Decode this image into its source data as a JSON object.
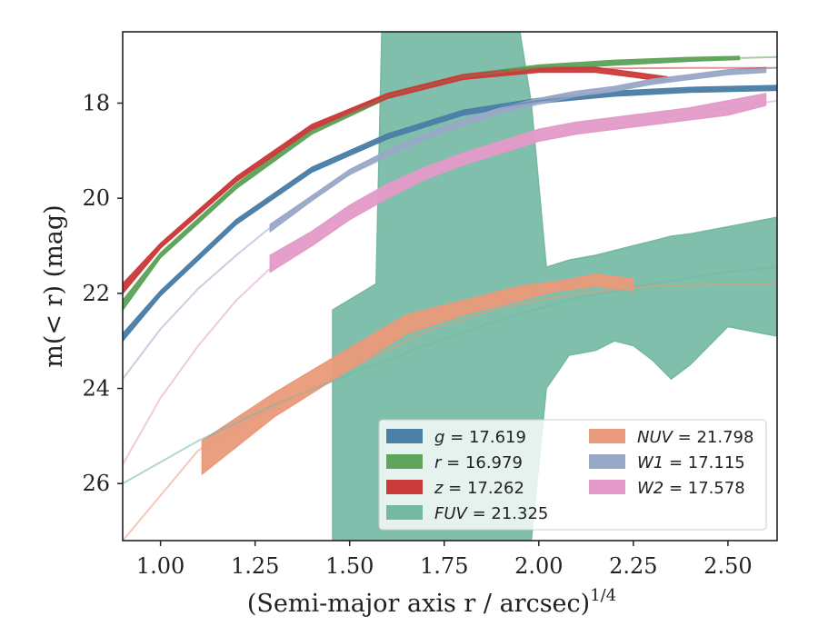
{
  "chart_data": {
    "type": "line",
    "xlabel": "(Semi-major axis r / arcsec)",
    "xlabel_exponent": "1/4",
    "ylabel": "m(< r) (mag)",
    "xlim": [
      0.9,
      2.63
    ],
    "ylim": [
      27.2,
      16.5
    ],
    "y_inverted": true,
    "x_ticks": [
      1.0,
      1.25,
      1.5,
      1.75,
      2.0,
      2.25,
      2.5
    ],
    "x_tick_labels": [
      "1.00",
      "1.25",
      "1.50",
      "1.75",
      "2.00",
      "2.25",
      "2.50"
    ],
    "y_ticks": [
      18,
      20,
      22,
      24,
      26
    ],
    "y_tick_labels": [
      "18",
      "20",
      "22",
      "24",
      "26"
    ],
    "grid": false,
    "legend_position": "lower-right",
    "legend": [
      {
        "band": "g",
        "value": "17.619",
        "color": "#4c7fa8"
      },
      {
        "band": "NUV",
        "value": "21.798",
        "color": "#e99a7a"
      },
      {
        "band": "r",
        "value": "16.979",
        "color": "#5ea45b"
      },
      {
        "band": "W1",
        "value": "17.115",
        "color": "#9aa8c8"
      },
      {
        "band": "z",
        "value": "17.262",
        "color": "#cc3b3b"
      },
      {
        "band": "W2",
        "value": "17.578",
        "color": "#e39ac8"
      },
      {
        "band": "FUV",
        "value": "21.325",
        "color": "#72b8a2"
      }
    ],
    "series": [
      {
        "name": "g",
        "color": "#4c7fa8",
        "model_x": [
          0.9,
          1.0,
          1.2,
          1.4,
          1.6,
          1.8,
          2.0,
          2.2,
          2.4,
          2.63
        ],
        "model_y": [
          22.95,
          22.0,
          20.5,
          19.4,
          18.7,
          18.2,
          17.95,
          17.8,
          17.72,
          17.68
        ],
        "x": [
          0.9,
          1.0,
          1.2,
          1.4,
          1.6,
          1.8,
          2.0,
          2.2,
          2.4,
          2.63
        ],
        "y_lower": [
          23.0,
          22.05,
          20.55,
          19.45,
          18.75,
          18.25,
          18.0,
          17.85,
          17.77,
          17.73
        ],
        "y_upper": [
          22.85,
          21.95,
          20.45,
          19.35,
          18.65,
          18.15,
          17.9,
          17.75,
          17.67,
          17.63
        ]
      },
      {
        "name": "r",
        "color": "#5ea45b",
        "model_x": [
          0.9,
          1.0,
          1.2,
          1.4,
          1.6,
          1.8,
          2.0,
          2.2,
          2.4,
          2.63
        ],
        "model_y": [
          22.25,
          21.2,
          19.75,
          18.6,
          17.85,
          17.45,
          17.25,
          17.15,
          17.08,
          17.03
        ],
        "x": [
          0.9,
          1.0,
          1.2,
          1.4,
          1.6,
          1.8,
          2.0,
          2.2,
          2.4,
          2.53
        ],
        "y_lower": [
          22.35,
          21.25,
          19.8,
          18.65,
          17.9,
          17.5,
          17.3,
          17.2,
          17.12,
          17.08
        ],
        "y_upper": [
          22.15,
          21.15,
          19.7,
          18.55,
          17.8,
          17.4,
          17.2,
          17.1,
          17.04,
          17.02
        ]
      },
      {
        "name": "z",
        "color": "#cc3b3b",
        "model_x": [
          0.9,
          1.0,
          1.2,
          1.4,
          1.6,
          1.8,
          2.0,
          2.2,
          2.4,
          2.63
        ],
        "model_y": [
          21.9,
          21.0,
          19.6,
          18.5,
          17.85,
          17.45,
          17.3,
          17.27,
          17.26,
          17.26
        ],
        "x": [
          0.9,
          1.0,
          1.2,
          1.4,
          1.6,
          1.8,
          2.0,
          2.15,
          2.25,
          2.34
        ],
        "y_lower": [
          22.0,
          21.05,
          19.65,
          18.55,
          17.9,
          17.5,
          17.35,
          17.35,
          17.45,
          17.55
        ],
        "y_upper": [
          21.8,
          20.95,
          19.55,
          18.45,
          17.8,
          17.4,
          17.25,
          17.25,
          17.35,
          17.45
        ]
      },
      {
        "name": "FUV",
        "color": "#72b8a2",
        "model_x": [
          0.9,
          1.1,
          1.3,
          1.5,
          1.7,
          1.9,
          2.1,
          2.3,
          2.5,
          2.63
        ],
        "model_y": [
          26.0,
          25.1,
          24.35,
          23.7,
          23.1,
          22.55,
          22.1,
          21.8,
          21.55,
          21.45
        ],
        "x": [
          1.455,
          1.455,
          1.57,
          1.585,
          1.95,
          1.98,
          2.02,
          2.08,
          2.15,
          2.2,
          2.25,
          2.3,
          2.35,
          2.4,
          2.5,
          2.63
        ],
        "y_lower": [
          27.2,
          27.2,
          27.2,
          27.2,
          27.2,
          27.2,
          24.0,
          23.3,
          23.2,
          23.0,
          23.1,
          23.4,
          23.8,
          23.5,
          22.7,
          22.9
        ],
        "y_upper": [
          22.35,
          22.35,
          21.8,
          16.5,
          16.5,
          18.0,
          21.45,
          21.3,
          21.2,
          21.1,
          21.0,
          20.9,
          20.8,
          20.75,
          20.6,
          20.4
        ]
      },
      {
        "name": "NUV",
        "color": "#e99a7a",
        "model_x": [
          0.9,
          1.1,
          1.3,
          1.5,
          1.7,
          1.9,
          2.1,
          2.3,
          2.5,
          2.63
        ],
        "model_y": [
          27.2,
          25.3,
          24.4,
          23.6,
          22.8,
          22.3,
          22.0,
          21.85,
          21.8,
          21.8
        ],
        "x": [
          1.11,
          1.3,
          1.5,
          1.65,
          1.8,
          1.95,
          2.05,
          2.15,
          2.25
        ],
        "y_lower": [
          25.8,
          24.6,
          23.6,
          22.85,
          22.45,
          22.15,
          21.95,
          21.85,
          21.95
        ],
        "y_upper": [
          25.1,
          24.1,
          23.15,
          22.45,
          22.15,
          21.85,
          21.75,
          21.6,
          21.7
        ]
      },
      {
        "name": "W1",
        "color": "#9aa8c8",
        "model_x": [
          0.9,
          1.0,
          1.1,
          1.2,
          1.3,
          1.4,
          1.5,
          1.7,
          1.9,
          2.1,
          2.3,
          2.5,
          2.63
        ],
        "model_y": [
          23.8,
          22.75,
          21.9,
          21.2,
          20.55,
          20.0,
          19.5,
          18.75,
          18.2,
          17.85,
          17.55,
          17.35,
          17.25
        ],
        "x": [
          1.29,
          1.4,
          1.5,
          1.6,
          1.7,
          1.8,
          1.9,
          2.0,
          2.1,
          2.2,
          2.3,
          2.4,
          2.5,
          2.6
        ],
        "y_lower": [
          20.7,
          20.05,
          19.5,
          19.1,
          18.75,
          18.45,
          18.2,
          18.0,
          17.85,
          17.75,
          17.6,
          17.5,
          17.4,
          17.35
        ],
        "y_upper": [
          20.55,
          19.95,
          19.4,
          19.0,
          18.65,
          18.35,
          18.1,
          17.9,
          17.75,
          17.65,
          17.5,
          17.4,
          17.3,
          17.25
        ]
      },
      {
        "name": "W2",
        "color": "#e39ac8",
        "model_x": [
          0.9,
          1.0,
          1.1,
          1.2,
          1.3,
          1.4,
          1.5,
          1.7,
          1.9,
          2.1,
          2.3,
          2.5,
          2.63
        ],
        "model_y": [
          25.6,
          24.2,
          23.1,
          22.15,
          21.4,
          20.8,
          20.2,
          19.4,
          18.95,
          18.55,
          18.3,
          18.1,
          17.95
        ],
        "x": [
          1.29,
          1.4,
          1.5,
          1.6,
          1.7,
          1.8,
          1.9,
          2.0,
          2.1,
          2.2,
          2.3,
          2.4,
          2.5,
          2.6
        ],
        "y_lower": [
          21.55,
          21.0,
          20.45,
          20.0,
          19.6,
          19.3,
          19.05,
          18.8,
          18.65,
          18.55,
          18.45,
          18.35,
          18.25,
          18.05
        ],
        "y_upper": [
          21.2,
          20.7,
          20.15,
          19.7,
          19.35,
          19.05,
          18.8,
          18.55,
          18.4,
          18.3,
          18.2,
          18.1,
          17.95,
          17.8
        ]
      }
    ]
  }
}
